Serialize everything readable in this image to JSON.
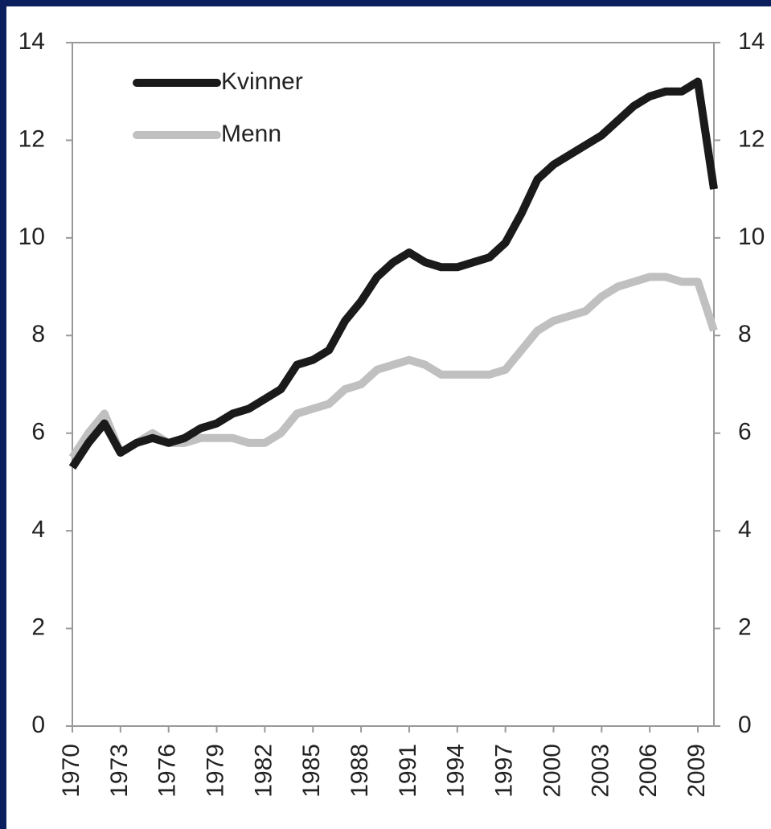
{
  "chart_data": {
    "type": "line",
    "x": [
      1970,
      1971,
      1972,
      1973,
      1974,
      1975,
      1976,
      1977,
      1978,
      1979,
      1980,
      1981,
      1982,
      1983,
      1984,
      1985,
      1986,
      1987,
      1988,
      1989,
      1990,
      1991,
      1992,
      1993,
      1994,
      1995,
      1996,
      1997,
      1998,
      1999,
      2000,
      2001,
      2002,
      2003,
      2004,
      2005,
      2006,
      2007,
      2008,
      2009,
      2010
    ],
    "series": [
      {
        "name": "Kvinner",
        "color": "#1a1a1a",
        "values": [
          5.3,
          5.8,
          6.2,
          5.6,
          5.8,
          5.9,
          5.8,
          5.9,
          6.1,
          6.2,
          6.4,
          6.5,
          6.7,
          6.9,
          7.4,
          7.5,
          7.7,
          8.3,
          8.7,
          9.2,
          9.5,
          9.7,
          9.5,
          9.4,
          9.4,
          9.5,
          9.6,
          9.9,
          10.5,
          11.2,
          11.5,
          11.7,
          11.9,
          12.1,
          12.4,
          12.7,
          12.9,
          13.0,
          13.0,
          13.2,
          11.0
        ]
      },
      {
        "name": "Menn",
        "color": "#c0c0c0",
        "values": [
          5.5,
          6.0,
          6.4,
          5.6,
          5.8,
          6.0,
          5.8,
          5.8,
          5.9,
          5.9,
          5.9,
          5.8,
          5.8,
          6.0,
          6.4,
          6.5,
          6.6,
          6.9,
          7.0,
          7.3,
          7.4,
          7.5,
          7.4,
          7.2,
          7.2,
          7.2,
          7.2,
          7.3,
          7.7,
          8.1,
          8.3,
          8.4,
          8.5,
          8.8,
          9.0,
          9.1,
          9.2,
          9.2,
          9.1,
          9.1,
          8.1
        ]
      }
    ],
    "xlim": [
      1970,
      2010
    ],
    "xticks": [
      1970,
      1973,
      1976,
      1979,
      1982,
      1985,
      1988,
      1991,
      1994,
      1997,
      2000,
      2003,
      2006,
      2009
    ],
    "ylim": [
      0,
      14
    ],
    "yticks": [
      0,
      2,
      4,
      6,
      8,
      10,
      12,
      14
    ],
    "y2lim": [
      0,
      14
    ],
    "y2ticks": [
      0,
      2,
      4,
      6,
      8,
      10,
      12,
      14
    ],
    "legend": "upper left"
  }
}
